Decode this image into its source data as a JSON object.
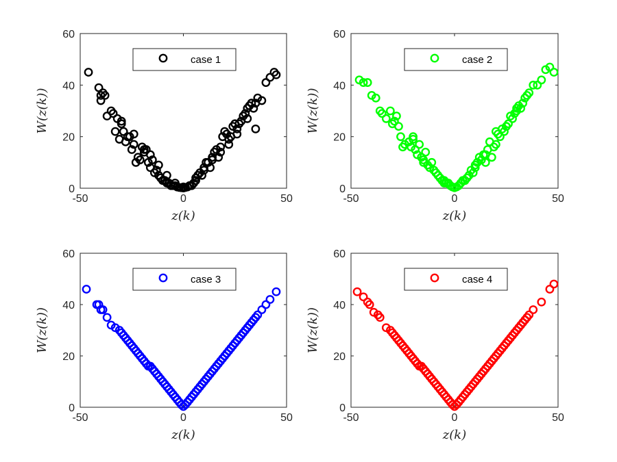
{
  "chart_data": [
    {
      "type": "scatter",
      "xlabel": "z(k)",
      "ylabel": "W(z(k))",
      "xlim": [
        -50,
        50
      ],
      "ylim": [
        0,
        60
      ],
      "xticks": [
        "-50",
        "0",
        "50"
      ],
      "yticks": [
        "0",
        "20",
        "40",
        "60"
      ],
      "legend_position": "top-right",
      "grid": false,
      "series": [
        {
          "name": "case 1",
          "color": "#000000",
          "marker": "open-circle",
          "x": [
            -46,
            -41,
            -40,
            -40,
            -39,
            -38,
            -37,
            -35,
            -34,
            -33,
            -32,
            -31,
            -30,
            -29,
            -28,
            -27,
            -26,
            -25,
            -24,
            -23,
            -22,
            -21,
            -20,
            -19,
            -18,
            -17,
            -16,
            -15,
            -14,
            -13,
            -12,
            -11,
            -10,
            -9,
            -8,
            -7,
            -6,
            -5,
            -4,
            -3,
            -2,
            -1,
            0,
            1,
            2,
            3,
            4,
            5,
            6,
            7,
            8,
            9,
            10,
            11,
            12,
            13,
            14,
            15,
            16,
            17,
            18,
            19,
            20,
            21,
            22,
            23,
            24,
            25,
            26,
            27,
            28,
            29,
            30,
            31,
            32,
            33,
            34,
            35,
            36,
            38,
            40,
            42,
            44,
            45,
            -30,
            -24,
            -19,
            -16,
            -12,
            -8,
            -4,
            0,
            3,
            6,
            10,
            14,
            18,
            22,
            26,
            31,
            35
          ],
          "y": [
            45,
            39,
            36,
            34,
            37,
            36,
            28,
            30,
            29,
            22,
            27,
            19,
            25,
            22,
            18,
            20,
            20,
            15,
            17,
            10,
            12,
            11,
            16,
            14,
            15,
            10,
            8,
            11,
            6,
            7,
            5,
            4,
            3,
            3,
            2,
            2,
            1,
            1,
            1,
            0.5,
            0.3,
            0.2,
            0.1,
            0.3,
            0.5,
            1,
            1,
            2,
            3,
            5,
            6,
            5,
            8,
            10,
            10,
            8,
            12,
            14,
            15,
            12,
            16,
            20,
            22,
            21,
            19,
            20,
            24,
            25,
            23,
            25,
            26,
            28,
            29,
            31,
            32,
            33,
            31,
            33,
            35,
            34,
            41,
            43,
            45,
            44,
            26,
            21,
            15,
            13,
            9,
            5,
            2,
            0.5,
            1,
            4,
            7,
            11,
            14,
            17,
            21,
            27,
            23
          ]
        }
      ]
    },
    {
      "type": "scatter",
      "xlabel": "z(k)",
      "ylabel": "W(z(k))",
      "xlim": [
        -50,
        50
      ],
      "ylim": [
        0,
        60
      ],
      "xticks": [
        "-50",
        "0",
        "50"
      ],
      "yticks": [
        "0",
        "20",
        "40",
        "60"
      ],
      "legend_position": "top-right",
      "grid": false,
      "series": [
        {
          "name": "case 2",
          "color": "#00ff00",
          "marker": "open-circle",
          "x": [
            -46,
            -44,
            -42,
            -40,
            -38,
            -36,
            -35,
            -33,
            -31,
            -30,
            -29,
            -28,
            -27,
            -26,
            -25,
            -24,
            -22,
            -21,
            -20,
            -19,
            -18,
            -17,
            -16,
            -15,
            -14,
            -13,
            -12,
            -11,
            -10,
            -9,
            -8,
            -7,
            -6,
            -5,
            -4,
            -3,
            -2,
            -1,
            0,
            1,
            2,
            3,
            4,
            5,
            6,
            7,
            8,
            9,
            10,
            11,
            12,
            13,
            14,
            15,
            16,
            17,
            18,
            19,
            20,
            21,
            22,
            23,
            24,
            25,
            26,
            27,
            28,
            29,
            30,
            31,
            32,
            33,
            34,
            35,
            36,
            38,
            40,
            42,
            44,
            46,
            48,
            -20,
            -15,
            -10,
            -5,
            0,
            5,
            10,
            15,
            20,
            25,
            30
          ],
          "y": [
            42,
            41,
            41,
            36,
            35,
            30,
            29,
            27,
            30,
            25,
            26,
            28,
            24,
            20,
            16,
            17,
            18,
            16,
            20,
            15,
            13,
            17,
            12,
            10,
            14,
            9,
            8,
            10,
            7,
            6,
            5,
            4,
            3,
            3,
            2,
            2,
            1,
            0.5,
            0.2,
            0.5,
            1,
            2,
            3,
            3,
            4,
            5,
            7,
            6,
            8,
            10,
            12,
            11,
            13,
            10,
            15,
            18,
            12,
            16,
            17,
            21,
            20,
            23,
            22,
            24,
            25,
            28,
            27,
            29,
            30,
            32,
            31,
            33,
            35,
            36,
            37,
            40,
            40,
            42,
            46,
            47,
            45,
            19,
            11,
            7,
            2,
            0.3,
            3,
            9,
            13,
            22,
            24,
            31
          ]
        }
      ]
    },
    {
      "type": "scatter",
      "xlabel": "z(k)",
      "ylabel": "W(z(k))",
      "xlim": [
        -50,
        50
      ],
      "ylim": [
        0,
        60
      ],
      "xticks": [
        "-50",
        "0",
        "50"
      ],
      "yticks": [
        "0",
        "20",
        "40",
        "60"
      ],
      "legend_position": "top-right",
      "grid": false,
      "series": [
        {
          "name": "case 3",
          "color": "#0000ff",
          "marker": "open-circle",
          "x": [
            -47,
            -42,
            -41,
            -40,
            -39,
            -37,
            -35,
            -33,
            -31,
            -30,
            -29,
            -28,
            -27,
            -26,
            -25,
            -24,
            -23,
            -22,
            -21,
            -20,
            -19,
            -18,
            -17,
            -16,
            -15,
            -14,
            -13,
            -12,
            -11,
            -10,
            -9,
            -8,
            -7,
            -6,
            -5,
            -4,
            -3,
            -2,
            -1,
            0,
            1,
            2,
            3,
            4,
            5,
            6,
            7,
            8,
            9,
            10,
            11,
            12,
            13,
            14,
            15,
            16,
            17,
            18,
            19,
            20,
            21,
            22,
            23,
            24,
            25,
            26,
            27,
            28,
            29,
            30,
            31,
            32,
            33,
            34,
            35,
            36,
            38,
            40,
            42,
            45
          ],
          "y": [
            46,
            40,
            40,
            38,
            38,
            35,
            32,
            31,
            30,
            29,
            28,
            27,
            26,
            25,
            24,
            23,
            22,
            21,
            20,
            19,
            18,
            17,
            16,
            16,
            15,
            14,
            13,
            12,
            11,
            10,
            9,
            8,
            7,
            6,
            5,
            4,
            3,
            2,
            1,
            0.3,
            1,
            2,
            3,
            4,
            5,
            6,
            7,
            8,
            9,
            10,
            11,
            12,
            13,
            14,
            15,
            16,
            17,
            18,
            19,
            20,
            21,
            22,
            23,
            24,
            25,
            26,
            27,
            28,
            29,
            30,
            31,
            32,
            33,
            34,
            35,
            36,
            38,
            40,
            42,
            45
          ]
        }
      ]
    },
    {
      "type": "scatter",
      "xlabel": "z(k)",
      "ylabel": "W(z(k))",
      "xlim": [
        -50,
        50
      ],
      "ylim": [
        0,
        60
      ],
      "xticks": [
        "-50",
        "0",
        "50"
      ],
      "yticks": [
        "0",
        "20",
        "40",
        "60"
      ],
      "legend_position": "top-right",
      "grid": false,
      "series": [
        {
          "name": "case 4",
          "color": "#ff0000",
          "marker": "open-circle",
          "x": [
            -47,
            -44,
            -42,
            -41,
            -39,
            -37,
            -36,
            -33,
            -31,
            -30,
            -29,
            -28,
            -27,
            -26,
            -25,
            -24,
            -23,
            -22,
            -21,
            -20,
            -19,
            -18,
            -17,
            -16,
            -15,
            -14,
            -13,
            -12,
            -11,
            -10,
            -9,
            -8,
            -7,
            -6,
            -5,
            -4,
            -3,
            -2,
            -1,
            0,
            1,
            2,
            3,
            4,
            5,
            6,
            7,
            8,
            9,
            10,
            11,
            12,
            13,
            14,
            15,
            16,
            17,
            18,
            19,
            20,
            21,
            22,
            23,
            24,
            25,
            26,
            27,
            28,
            29,
            30,
            31,
            32,
            33,
            34,
            35,
            36,
            38,
            42,
            46,
            48
          ],
          "y": [
            45,
            43,
            41,
            40,
            37,
            36,
            35,
            31,
            30,
            29,
            28,
            27,
            26,
            25,
            24,
            23,
            22,
            21,
            20,
            19,
            18,
            17,
            16,
            16,
            15,
            14,
            13,
            12,
            11,
            10,
            9,
            8,
            7,
            6,
            5,
            4,
            3,
            2,
            1,
            0.3,
            1,
            2,
            3,
            4,
            5,
            6,
            7,
            8,
            9,
            10,
            11,
            12,
            13,
            14,
            15,
            16,
            17,
            18,
            19,
            20,
            21,
            22,
            23,
            24,
            25,
            26,
            27,
            28,
            29,
            30,
            31,
            32,
            33,
            34,
            35,
            36,
            38,
            41,
            46,
            48
          ]
        }
      ]
    }
  ]
}
